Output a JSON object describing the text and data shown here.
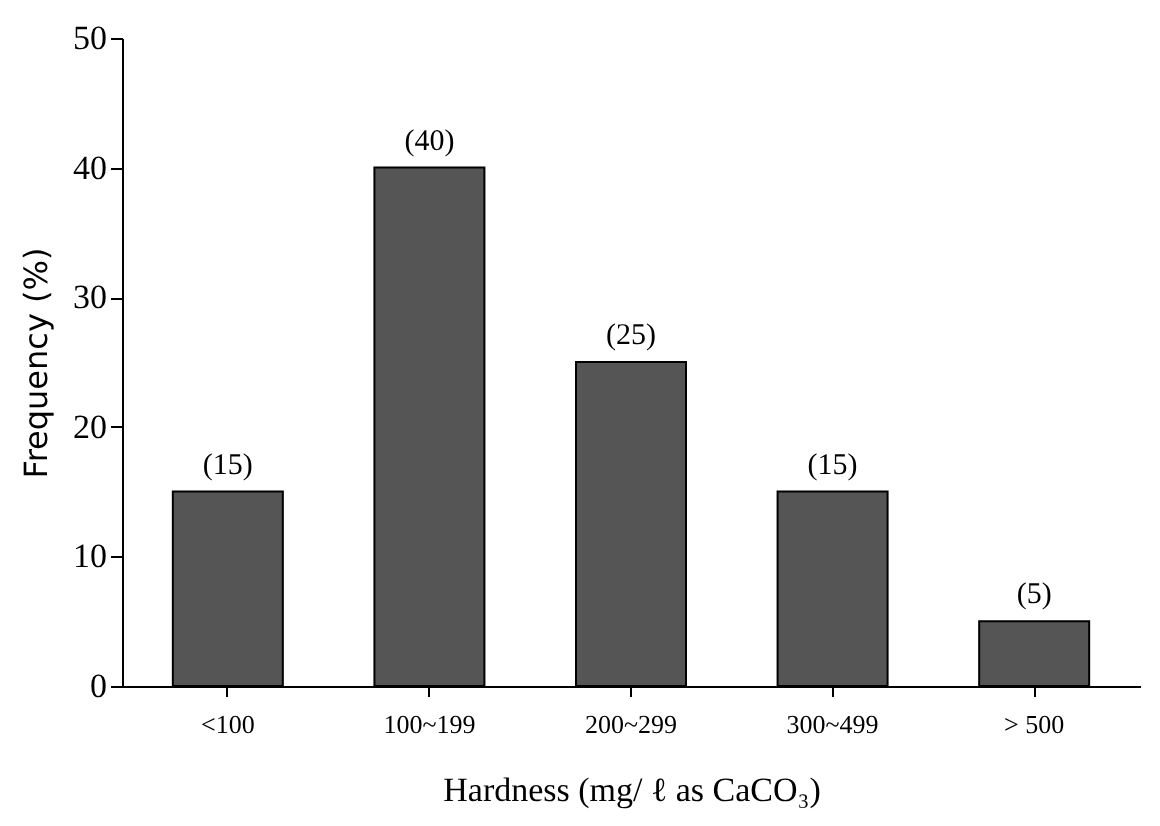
{
  "chart_data": {
    "type": "bar",
    "xlabel": "Hardness (mg/ ℓ as CaCO₃)",
    "ylabel": "Frequency (%)",
    "categories": [
      "<100",
      "100~199",
      "200~299",
      "300~499",
      "> 500"
    ],
    "values": [
      15,
      40,
      25,
      15,
      5
    ],
    "value_labels": [
      "(15)",
      "(40)",
      "(25)",
      "(15)",
      "(5)"
    ],
    "color": "#555555",
    "ylim": [
      0,
      50
    ],
    "yticks": [
      0,
      10,
      20,
      30,
      40,
      50
    ],
    "grid": false
  }
}
